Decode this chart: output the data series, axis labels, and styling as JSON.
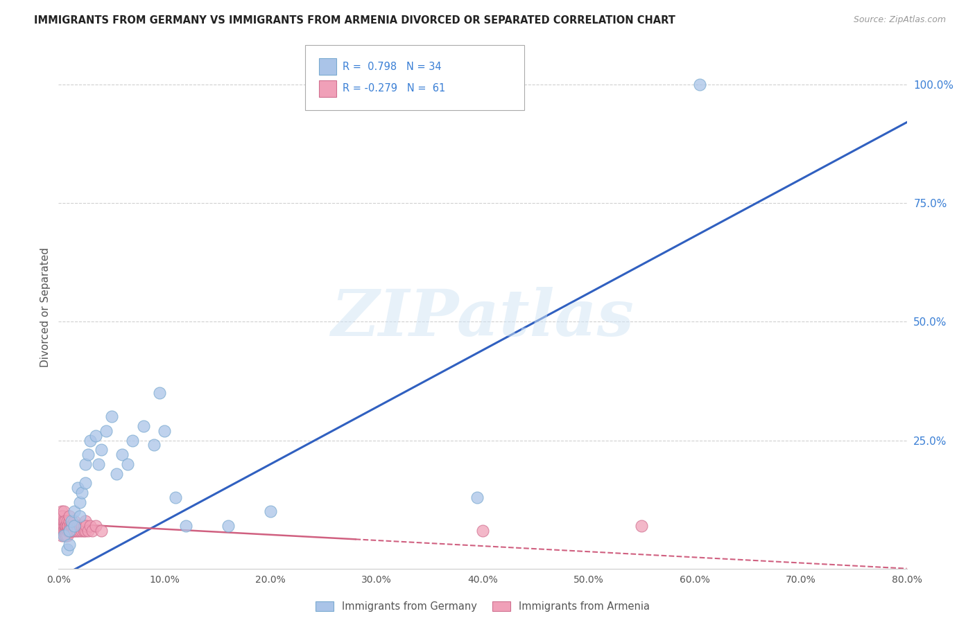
{
  "title": "IMMIGRANTS FROM GERMANY VS IMMIGRANTS FROM ARMENIA DIVORCED OR SEPARATED CORRELATION CHART",
  "source": "Source: ZipAtlas.com",
  "ylabel": "Divorced or Separated",
  "xlim": [
    0.0,
    0.8
  ],
  "ylim": [
    -0.02,
    1.08
  ],
  "yticks": [
    0.0,
    0.25,
    0.5,
    0.75,
    1.0
  ],
  "ytick_labels": [
    "",
    "25.0%",
    "50.0%",
    "75.0%",
    "100.0%"
  ],
  "xticks": [
    0.0,
    0.1,
    0.2,
    0.3,
    0.4,
    0.5,
    0.6,
    0.7,
    0.8
  ],
  "xtick_labels": [
    "0.0%",
    "10.0%",
    "20.0%",
    "30.0%",
    "40.0%",
    "50.0%",
    "60.0%",
    "70.0%",
    "80.0%"
  ],
  "germany_color": "#aac4e8",
  "germany_edge": "#7aaad0",
  "armenia_color": "#f0a0b8",
  "armenia_edge": "#d07090",
  "trend_germany_color": "#3060c0",
  "trend_armenia_color": "#d06080",
  "watermark_text": "ZIPatlas",
  "legend_label_germany": "Immigrants from Germany",
  "legend_label_armenia": "Immigrants from Armenia",
  "germany_R": 0.798,
  "germany_N": 34,
  "armenia_R": -0.279,
  "armenia_N": 61,
  "trend_germany_x0": 0.0,
  "trend_germany_y0": -0.04,
  "trend_germany_x1": 0.8,
  "trend_germany_y1": 0.92,
  "trend_armenia_x0": 0.0,
  "trend_armenia_y0": 0.075,
  "trend_armenia_x1": 0.8,
  "trend_armenia_y1": -0.02,
  "germany_x": [
    0.005,
    0.008,
    0.01,
    0.01,
    0.012,
    0.015,
    0.015,
    0.018,
    0.02,
    0.02,
    0.022,
    0.025,
    0.025,
    0.028,
    0.03,
    0.035,
    0.038,
    0.04,
    0.045,
    0.05,
    0.055,
    0.06,
    0.065,
    0.07,
    0.08,
    0.09,
    0.095,
    0.1,
    0.11,
    0.12,
    0.16,
    0.2,
    0.395,
    0.605
  ],
  "germany_y": [
    0.05,
    0.02,
    0.06,
    0.03,
    0.08,
    0.1,
    0.07,
    0.15,
    0.12,
    0.09,
    0.14,
    0.2,
    0.16,
    0.22,
    0.25,
    0.26,
    0.2,
    0.23,
    0.27,
    0.3,
    0.18,
    0.22,
    0.2,
    0.25,
    0.28,
    0.24,
    0.35,
    0.27,
    0.13,
    0.07,
    0.07,
    0.1,
    0.13,
    1.0
  ],
  "armenia_x": [
    0.002,
    0.002,
    0.003,
    0.003,
    0.003,
    0.003,
    0.004,
    0.004,
    0.004,
    0.004,
    0.005,
    0.005,
    0.005,
    0.005,
    0.005,
    0.006,
    0.006,
    0.006,
    0.006,
    0.007,
    0.007,
    0.007,
    0.008,
    0.008,
    0.008,
    0.008,
    0.009,
    0.009,
    0.01,
    0.01,
    0.01,
    0.01,
    0.011,
    0.011,
    0.012,
    0.012,
    0.013,
    0.013,
    0.014,
    0.015,
    0.015,
    0.016,
    0.017,
    0.018,
    0.018,
    0.02,
    0.02,
    0.022,
    0.022,
    0.024,
    0.024,
    0.025,
    0.025,
    0.026,
    0.028,
    0.03,
    0.032,
    0.035,
    0.04,
    0.4,
    0.55
  ],
  "armenia_y": [
    0.06,
    0.09,
    0.07,
    0.08,
    0.1,
    0.05,
    0.06,
    0.08,
    0.07,
    0.09,
    0.06,
    0.07,
    0.08,
    0.06,
    0.1,
    0.06,
    0.07,
    0.08,
    0.05,
    0.06,
    0.07,
    0.05,
    0.06,
    0.07,
    0.08,
    0.05,
    0.06,
    0.07,
    0.06,
    0.08,
    0.09,
    0.06,
    0.07,
    0.06,
    0.06,
    0.07,
    0.06,
    0.07,
    0.06,
    0.06,
    0.08,
    0.07,
    0.06,
    0.07,
    0.06,
    0.06,
    0.07,
    0.06,
    0.07,
    0.06,
    0.07,
    0.06,
    0.08,
    0.07,
    0.06,
    0.07,
    0.06,
    0.07,
    0.06,
    0.06,
    0.07
  ],
  "background_color": "#ffffff",
  "grid_color": "#d0d0d0"
}
